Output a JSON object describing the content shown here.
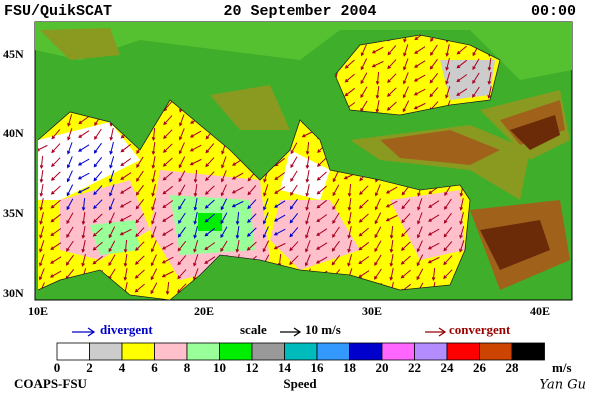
{
  "header": {
    "left": "FSU/QuikSCAT",
    "center": "20 September 2004",
    "right": "00:00"
  },
  "map": {
    "lat_labels": [
      "45N",
      "40N",
      "35N",
      "30N"
    ],
    "lon_labels": [
      "10E",
      "20E",
      "30E",
      "40E"
    ]
  },
  "legend": {
    "divergent": "divergent",
    "scale": "scale",
    "scale_value": "10 m/s",
    "convergent": "convergent"
  },
  "colorbar": {
    "ticks": [
      0,
      2,
      4,
      6,
      8,
      10,
      12,
      14,
      16,
      18,
      20,
      22,
      24,
      26,
      28
    ],
    "unit": "m/s",
    "title": "Speed",
    "colors": [
      "#ffffff",
      "#cccccc",
      "#ffff00",
      "#ffc0cb",
      "#99ff99",
      "#00ee00",
      "#999999",
      "#00bbbb",
      "#3399ff",
      "#0000cc",
      "#ff66ff",
      "#b38cff",
      "#ff0000",
      "#cc4400",
      "#000000"
    ]
  },
  "footer": {
    "left": "COAPS-FSU",
    "right": "Yan Gu"
  }
}
